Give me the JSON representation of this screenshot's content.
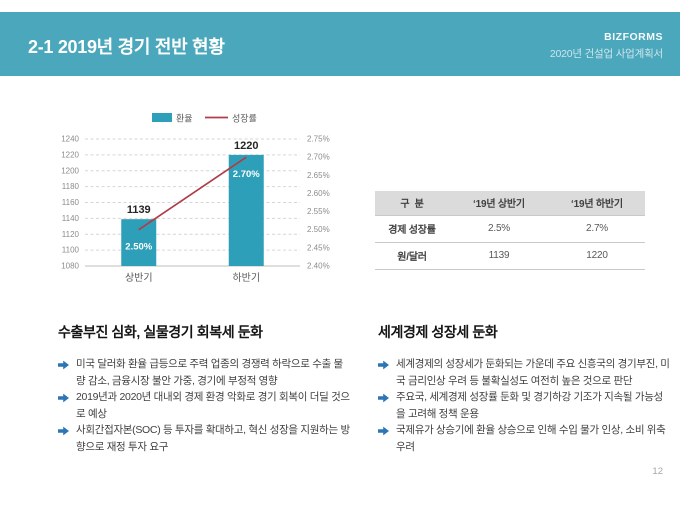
{
  "header": {
    "title": "2-1 2019년 경기 전반 현황",
    "brand": "BIZFORMS",
    "subtitle": "2020년 건설업 사업계획서",
    "bg_color": "#4BA7BC"
  },
  "chart_data": {
    "type": "bar",
    "combo": "bar+line",
    "title": "",
    "categories": [
      "상반기",
      "하반기"
    ],
    "series": [
      {
        "name": "환율",
        "type": "bar",
        "axis": "left",
        "values": [
          1139,
          1220
        ],
        "value_labels": [
          "1139",
          "1220"
        ],
        "color": "#2E9FB8"
      },
      {
        "name": "성장률",
        "type": "line",
        "axis": "right",
        "values": [
          2.5,
          2.7
        ],
        "value_labels": [
          "2.50%",
          "2.70%"
        ],
        "color": "#B03C49"
      }
    ],
    "left_axis": {
      "min": 1080,
      "max": 1240,
      "ticks": [
        "1240",
        "1220",
        "1200",
        "1180",
        "1160",
        "1140",
        "1120",
        "1100",
        "1080"
      ]
    },
    "right_axis": {
      "min": 2.4,
      "max": 2.75,
      "ticks": [
        "2.75%",
        "2.70%",
        "2.65%",
        "2.60%",
        "2.55%",
        "2.50%",
        "2.45%",
        "2.40%"
      ]
    },
    "legend_position": "top",
    "grid": true,
    "grid_color": "#D6D6D6",
    "axis_text_color": "#8C8C8C",
    "category_text_color": "#595959",
    "bar_label_color": "#262626",
    "line_label_color": "#ffffff"
  },
  "table": {
    "headers": [
      "구  분",
      "‘19년 상반기",
      "‘19년 하반기"
    ],
    "rows": [
      {
        "label": "경제 성장률",
        "values": [
          "2.5%",
          "2.7%"
        ]
      },
      {
        "label": "원/달러",
        "values": [
          "1139",
          "1220"
        ]
      }
    ]
  },
  "sections": [
    {
      "heading": "수출부진 심화, 실물경기 회복세 둔화",
      "bullets": [
        "미국 달러화 환율 급등으로 주력 업종의 경쟁력 하락으로 수출 물량 감소, 금융시장 불안 가중, 경기에 부정적 영향",
        "2019년과 2020년 대내외 경제 환경 악화로 경기 회복이 더딜 것으로 예상",
        "사회간접자본(SOC) 등 투자를 확대하고, 혁신 성장을 지원하는 방향으로 재정 투자 요구"
      ]
    },
    {
      "heading": "세계경제 성장세 둔화",
      "bullets": [
        "세계경제의 성장세가 둔화되는 가운데 주요 신흥국의 경기부진, 미국 금리인상 우려 등 불확실성도 여전히 높은 것으로 판단",
        "주요국, 세계경제 성장률 둔화 및 경기하강 기조가 지속될 가능성을 고려해 정책 운용",
        "국제유가 상승기에 환율 상승으로 인해 수입 물가 인상, 소비 위축 우려"
      ]
    }
  ],
  "arrow_color": "#2E75B6",
  "page_number": "12"
}
